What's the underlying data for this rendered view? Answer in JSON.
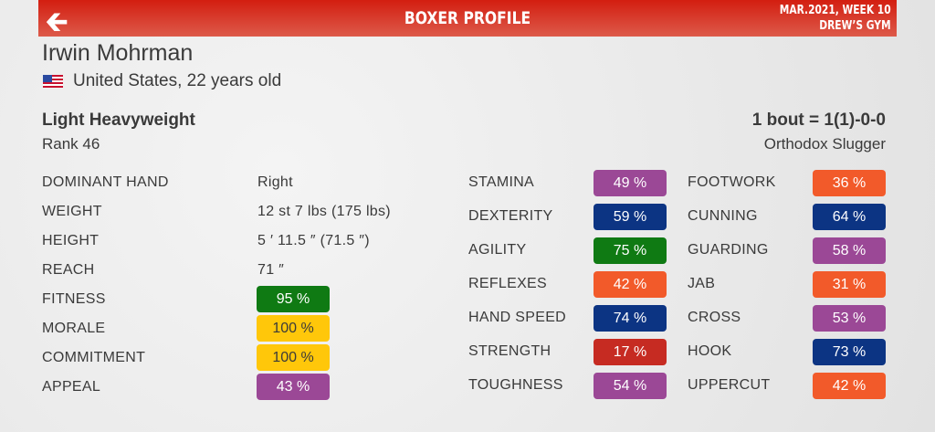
{
  "header": {
    "title": "BOXER PROFILE",
    "date": "MAR.2021, WEEK 10",
    "gym": "DREW’S GYM",
    "back_icon": "arrow-left-icon"
  },
  "boxer": {
    "name": "Irwin Mohrman",
    "country": "United States, 22 years old",
    "flag": "us-flag",
    "weight_class": "Light Heavyweight",
    "rank": "Rank 46",
    "record": "1 bout = 1(1)-0-0",
    "style": "Orthodox Slugger"
  },
  "info": [
    {
      "label": "DOMINANT HAND",
      "value": "Right"
    },
    {
      "label": "WEIGHT",
      "value": "12 st 7 lbs (175 lbs)"
    },
    {
      "label": "HEIGHT",
      "value": "5 ′ 11.5 ″ (71.5 ″)"
    },
    {
      "label": "REACH",
      "value": "71 ″"
    }
  ],
  "conditions": [
    {
      "label": "FITNESS",
      "value": "95 %",
      "color": "#0f7a13",
      "text": "#ffffff"
    },
    {
      "label": "MORALE",
      "value": "100 %",
      "color": "#ffc70a",
      "text": "#3a3a3a"
    },
    {
      "label": "COMMITMENT",
      "value": "100 %",
      "color": "#ffc70a",
      "text": "#3a3a3a"
    },
    {
      "label": "APPEAL",
      "value": "43 %",
      "color": "#9b4896",
      "text": "#ffffff"
    }
  ],
  "stats1": [
    {
      "label": "STAMINA",
      "value": "49 %",
      "color": "#9b4896"
    },
    {
      "label": "DEXTERITY",
      "value": "59 %",
      "color": "#0c3483"
    },
    {
      "label": "AGILITY",
      "value": "75 %",
      "color": "#0f7a13"
    },
    {
      "label": "REFLEXES",
      "value": "42 %",
      "color": "#f25a2a"
    },
    {
      "label": "HAND SPEED",
      "value": "74 %",
      "color": "#0c3483"
    },
    {
      "label": "STRENGTH",
      "value": "17 %",
      "color": "#c62b22"
    },
    {
      "label": "TOUGHNESS",
      "value": "54 %",
      "color": "#9b4896"
    }
  ],
  "stats2": [
    {
      "label": "FOOTWORK",
      "value": "36 %",
      "color": "#f25a2a"
    },
    {
      "label": "CUNNING",
      "value": "64 %",
      "color": "#0c3483"
    },
    {
      "label": "GUARDING",
      "value": "58 %",
      "color": "#9b4896"
    },
    {
      "label": "JAB",
      "value": "31 %",
      "color": "#f25a2a"
    },
    {
      "label": "CROSS",
      "value": "53 %",
      "color": "#9b4896"
    },
    {
      "label": "HOOK",
      "value": "73 %",
      "color": "#0c3483"
    },
    {
      "label": "UPPERCUT",
      "value": "42 %",
      "color": "#f25a2a"
    }
  ]
}
